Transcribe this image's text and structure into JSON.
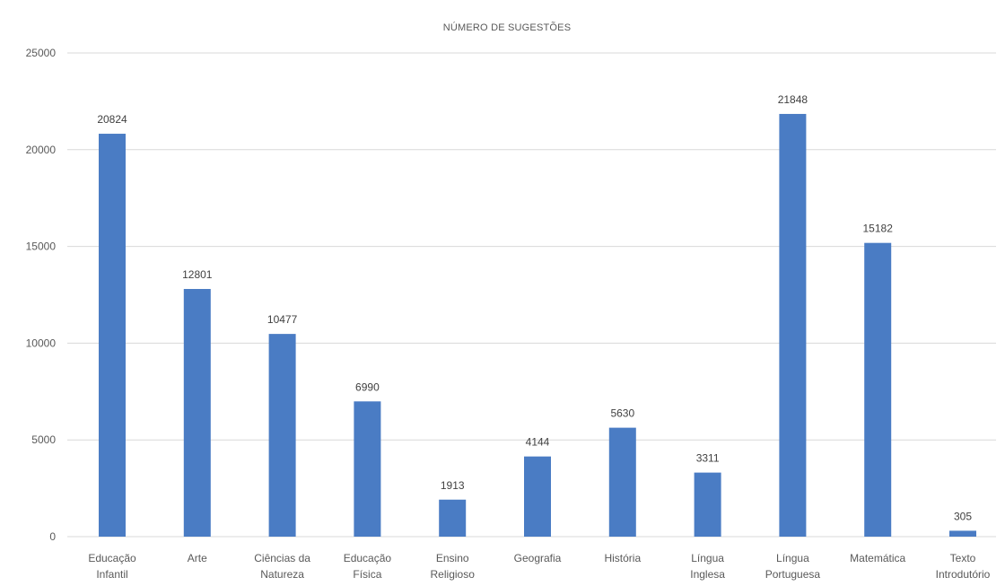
{
  "chart_data": {
    "type": "bar",
    "title": "NÚMERO DE SUGESTÕES",
    "categories": [
      [
        "Educação",
        "Infantil"
      ],
      [
        "Arte"
      ],
      [
        "Ciências da",
        "Natureza"
      ],
      [
        "Educação",
        "Física"
      ],
      [
        "Ensino",
        "Religioso"
      ],
      [
        "Geografia"
      ],
      [
        "História"
      ],
      [
        "Língua",
        "Inglesa"
      ],
      [
        "Língua",
        "Portuguesa"
      ],
      [
        "Matemática"
      ],
      [
        "Texto",
        "Introdutório"
      ]
    ],
    "values": [
      20824,
      12801,
      10477,
      6990,
      1913,
      4144,
      5630,
      3311,
      21848,
      15182,
      305
    ],
    "data_labels": [
      "20824",
      "12801",
      "10477",
      "6990",
      "1913",
      "4144",
      "5630",
      "3311",
      "21848",
      "15182",
      "305"
    ],
    "ylim": [
      0,
      25000
    ],
    "yticks": [
      "0",
      "5000",
      "10000",
      "15000",
      "20000",
      "25000"
    ],
    "xlabel": "",
    "ylabel": "",
    "grid": true,
    "legend": "none",
    "bar_color": "#4a7cc4"
  }
}
